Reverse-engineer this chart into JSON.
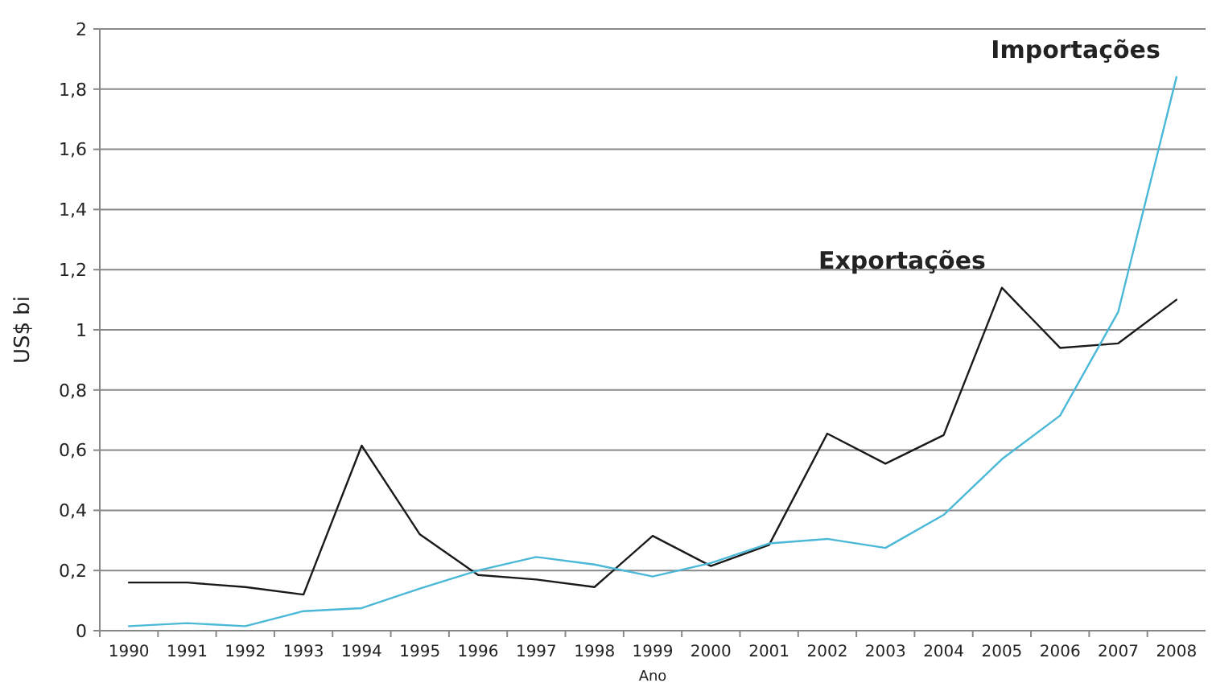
{
  "chart_data": {
    "type": "line",
    "xlabel": "Ano",
    "ylabel": "US$ bi",
    "categories": [
      "1990",
      "1991",
      "1992",
      "1993",
      "1994",
      "1995",
      "1996",
      "1997",
      "1998",
      "1999",
      "2000",
      "2001",
      "2002",
      "2003",
      "2004",
      "2005",
      "2006",
      "2007",
      "2008"
    ],
    "series": [
      {
        "name": "Exportações",
        "color": "#1a1a1a",
        "values": [
          0.16,
          0.16,
          0.145,
          0.12,
          0.615,
          0.32,
          0.185,
          0.17,
          0.145,
          0.315,
          0.215,
          0.285,
          0.655,
          0.555,
          0.65,
          1.14,
          0.94,
          0.955,
          1.1
        ]
      },
      {
        "name": "Importações",
        "color": "#4ab8d6",
        "values": [
          0.015,
          0.025,
          0.015,
          0.065,
          0.075,
          0.14,
          0.2,
          0.245,
          0.22,
          0.18,
          0.225,
          0.29,
          0.305,
          0.275,
          0.385,
          0.57,
          0.715,
          1.06,
          1.84
        ]
      }
    ],
    "ylim": [
      0,
      2
    ],
    "yticks": [
      0,
      {
        "value": 0.2,
        "label": "0,2"
      },
      {
        "value": 0.4,
        "label": "0,4"
      },
      {
        "value": 0.6,
        "label": "0,6"
      },
      {
        "value": 0.8,
        "label": "0,8"
      },
      1,
      {
        "value": 1.2,
        "label": "1,2"
      },
      {
        "value": 1.4,
        "label": "1,4"
      },
      {
        "value": 1.6,
        "label": "1,6"
      },
      {
        "value": 1.8,
        "label": "1,8"
      },
      2
    ],
    "grid": "y",
    "marker": "none",
    "line_style": "solid"
  }
}
